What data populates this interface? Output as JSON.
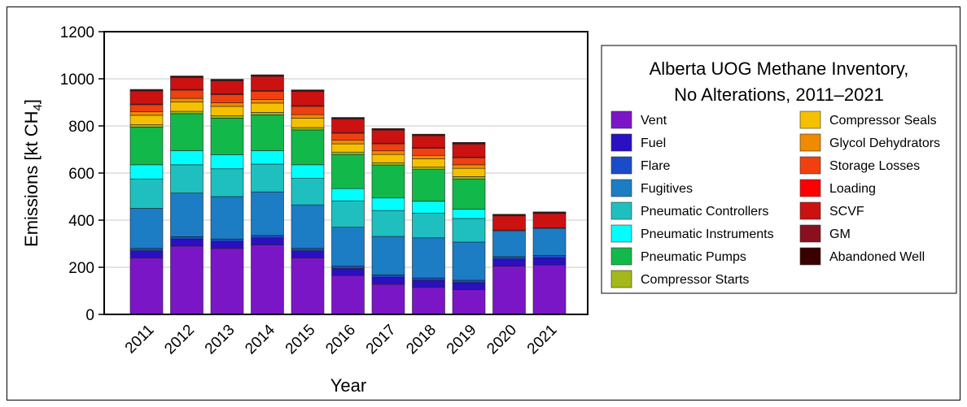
{
  "chart_data": {
    "type": "bar",
    "stacked": true,
    "title_lines": [
      "Alberta UOG Methane Inventory,",
      "No Alterations, 2011–2021"
    ],
    "xlabel": "Year",
    "ylabel_main": "Emissions [kt CH",
    "ylabel_sub": "4",
    "ylabel_end": "]",
    "ylim": [
      0,
      1200
    ],
    "yticks": [
      0,
      200,
      400,
      600,
      800,
      1000,
      1200
    ],
    "grid": true,
    "legend_position": "right",
    "categories": [
      "2011",
      "2012",
      "2013",
      "2014",
      "2015",
      "2016",
      "2017",
      "2018",
      "2019",
      "2020",
      "2021"
    ],
    "series": [
      {
        "name": "Vent",
        "color": "#7b16c6",
        "values": [
          240,
          290,
          280,
          295,
          240,
          165,
          128,
          115,
          105,
          205,
          210
        ]
      },
      {
        "name": "Fuel",
        "color": "#2a10c0",
        "values": [
          30,
          30,
          30,
          30,
          30,
          30,
          30,
          30,
          30,
          30,
          30
        ]
      },
      {
        "name": "Flare",
        "color": "#1a4bc8",
        "values": [
          10,
          10,
          10,
          10,
          10,
          10,
          10,
          10,
          10,
          10,
          10
        ]
      },
      {
        "name": "Fugitives",
        "color": "#1c7cc4",
        "values": [
          170,
          185,
          180,
          185,
          185,
          165,
          163,
          170,
          162,
          110,
          115
        ]
      },
      {
        "name": "Pneumatic Controllers",
        "color": "#1fbfbf",
        "values": [
          125,
          120,
          118,
          118,
          112,
          112,
          110,
          105,
          100,
          0,
          0
        ]
      },
      {
        "name": "Pneumatic Instruments",
        "color": "#00ffff",
        "values": [
          60,
          60,
          60,
          57,
          58,
          52,
          53,
          50,
          40,
          0,
          0
        ]
      },
      {
        "name": "Pneumatic Pumps",
        "color": "#13b84a",
        "values": [
          160,
          157,
          155,
          152,
          148,
          145,
          140,
          135,
          128,
          0,
          0
        ]
      },
      {
        "name": "Compressor Starts",
        "color": "#a4b81a",
        "values": [
          10,
          10,
          10,
          10,
          10,
          10,
          10,
          10,
          10,
          0,
          0
        ]
      },
      {
        "name": "Compressor Seals",
        "color": "#f5c000",
        "values": [
          40,
          40,
          40,
          40,
          40,
          35,
          35,
          35,
          35,
          0,
          0
        ]
      },
      {
        "name": "Glycol Dehydrators",
        "color": "#f08a00",
        "values": [
          15,
          15,
          15,
          15,
          15,
          15,
          15,
          15,
          15,
          0,
          0
        ]
      },
      {
        "name": "Storage Losses",
        "color": "#f04010",
        "values": [
          30,
          35,
          35,
          35,
          35,
          30,
          30,
          30,
          30,
          0,
          0
        ]
      },
      {
        "name": "Loading",
        "color": "#ff0000",
        "values": [
          3,
          3,
          3,
          3,
          3,
          3,
          3,
          3,
          3,
          3,
          3
        ]
      },
      {
        "name": "SCVF",
        "color": "#cc1111",
        "values": [
          55,
          50,
          55,
          60,
          60,
          57,
          55,
          50,
          55,
          60,
          60
        ]
      },
      {
        "name": "GM",
        "color": "#8a1020",
        "values": [
          3,
          3,
          3,
          3,
          3,
          3,
          3,
          3,
          3,
          3,
          3
        ]
      },
      {
        "name": "Abandoned Well",
        "color": "#3a0000",
        "values": [
          4,
          4,
          4,
          4,
          4,
          4,
          4,
          4,
          4,
          4,
          4
        ]
      }
    ]
  }
}
